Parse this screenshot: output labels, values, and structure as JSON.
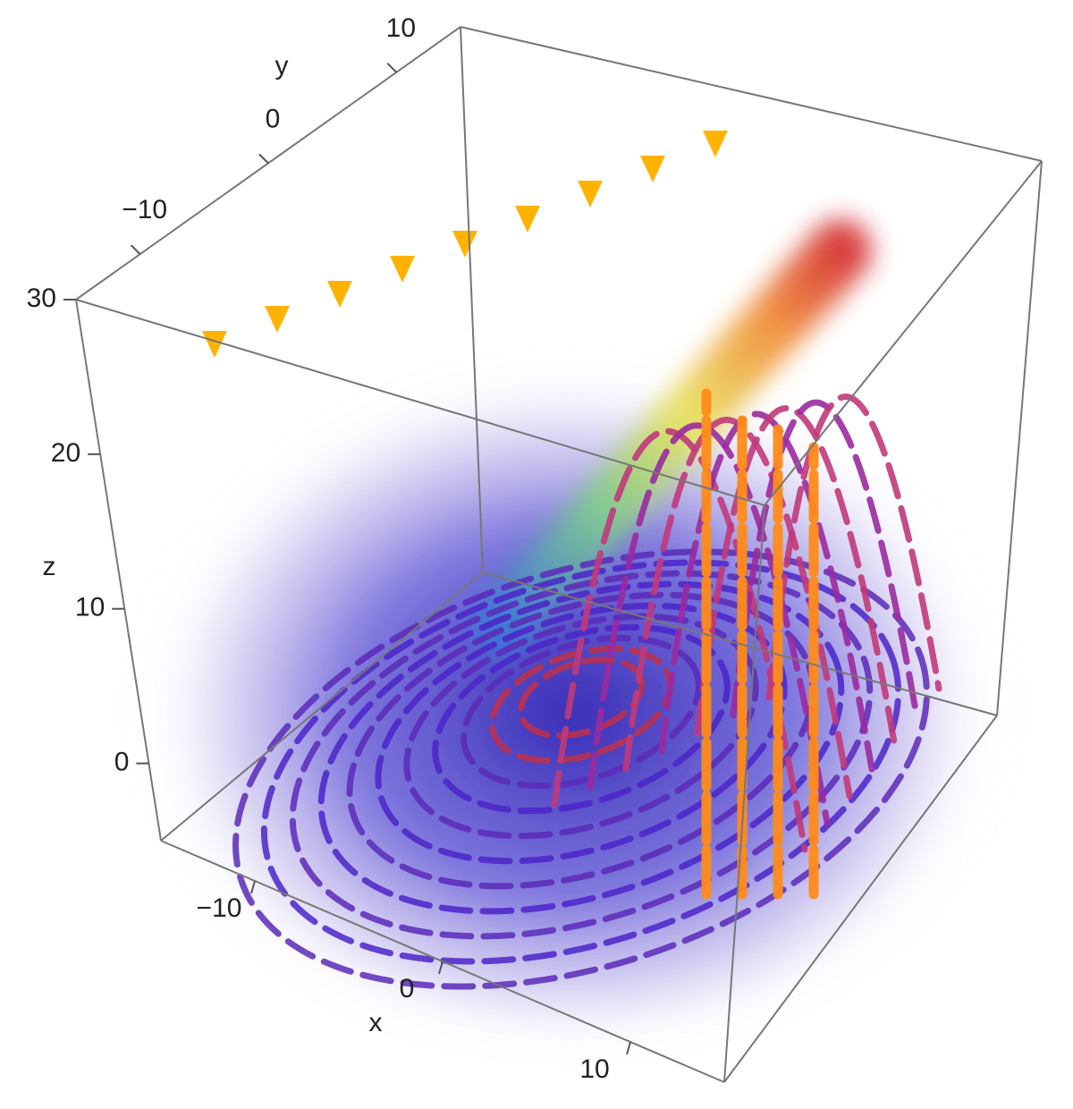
{
  "chart_data": {
    "type": "stream3d",
    "x_label": "x",
    "y_label": "y",
    "z_label": "z",
    "xlim": [
      -15,
      15
    ],
    "ylim": [
      -15,
      15
    ],
    "zlim": [
      -5,
      30
    ],
    "xticks": [
      {
        "value": -10,
        "label": "−10"
      },
      0,
      10
    ],
    "yticks": [
      {
        "value": -10,
        "label": "−10"
      },
      0,
      10
    ],
    "zticks": [
      0,
      10,
      20,
      30
    ]
  }
}
